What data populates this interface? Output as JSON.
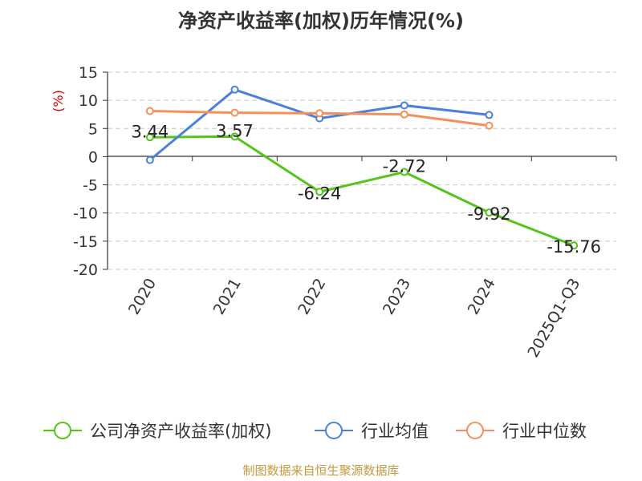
{
  "chart_data": {
    "type": "line",
    "title": "净资产收益率(加权)历年情况(%)",
    "ylabel": "(%)",
    "categories": [
      "2020",
      "2021",
      "2022",
      "2023",
      "2024",
      "2025Q1-Q3"
    ],
    "ylim": [
      -20,
      15
    ],
    "yticks": [
      15,
      10,
      5,
      0,
      -5,
      -10,
      -15,
      -20
    ],
    "grid": true,
    "legend_position": "bottom",
    "series": [
      {
        "name": "公司净资产收益率(加权)",
        "color": "#52c41a",
        "values": [
          3.44,
          3.57,
          -6.24,
          -2.72,
          -9.92,
          -15.76
        ],
        "labels": [
          "3.44",
          "3.57",
          "-6.24",
          "-2.72",
          "-9.92",
          "-15.76"
        ]
      },
      {
        "name": "行业均值",
        "color": "#4a7fdd",
        "values": [
          -0.6,
          11.9,
          6.8,
          9.1,
          7.4,
          null
        ]
      },
      {
        "name": "行业中位数",
        "color": "#f5905a",
        "values": [
          8.1,
          7.8,
          7.7,
          7.5,
          5.5,
          null
        ]
      }
    ]
  },
  "source": "制图数据来自恒生聚源数据库"
}
